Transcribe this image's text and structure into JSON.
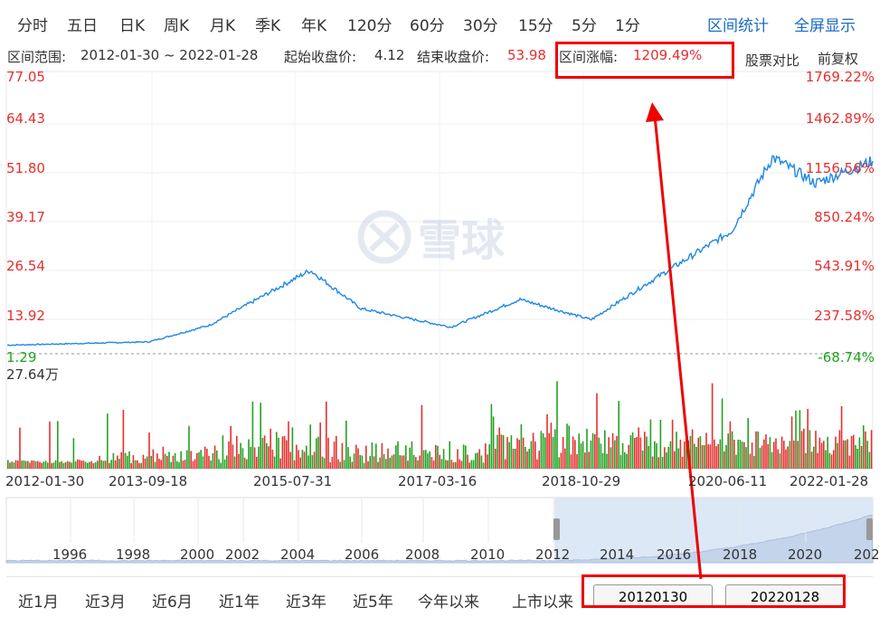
{
  "period_tabs": [
    "分时",
    "五日",
    "日K",
    "周K",
    "月K",
    "季K",
    "年K",
    "120分",
    "60分",
    "30分",
    "15分",
    "5分",
    "1分"
  ],
  "links": {
    "range_stats": "区间统计",
    "fullscreen": "全屏显示"
  },
  "info": {
    "range_label": "区间范围:",
    "range_value": "2012-01-30 ~ 2022-01-28",
    "start_label": "起始收盘价:",
    "start_value": "4.12",
    "end_label": "结束收盘价:",
    "end_value": "53.98",
    "change_label": "区间涨幅:",
    "change_value": "1209.49%",
    "compare": "股票对比",
    "adjust": "前复权"
  },
  "price_axis": [
    "77.05",
    "64.43",
    "51.80",
    "39.17",
    "26.54",
    "13.92",
    "1.29"
  ],
  "pct_axis": [
    "1769.22%",
    "1462.89%",
    "1156.56%",
    "850.24%",
    "543.91%",
    "237.58%",
    "-68.74%"
  ],
  "watermark": "雪球",
  "volume_max": "27.64万",
  "x_dates": [
    "2012-01-30",
    "2013-09-18",
    "2015-07-31",
    "2017-03-16",
    "2018-10-29",
    "2020-06-11",
    "2022-01-28"
  ],
  "nav_years": [
    "1996",
    "1998",
    "2000",
    "2002",
    "2004",
    "2006",
    "2008",
    "2010",
    "2012",
    "2014",
    "2016",
    "2018",
    "2020",
    "202"
  ],
  "range_buttons": [
    "近1月",
    "近3月",
    "近6月",
    "近1年",
    "近3年",
    "近5年",
    "今年以来",
    "上市以来"
  ],
  "date_inputs": {
    "start": "20120130",
    "end": "20220128"
  },
  "colors": {
    "up": "#e5302f",
    "down": "#23a223",
    "line": "#1e88e5",
    "link": "#1a6bc4",
    "annotation": "#e00000"
  },
  "chart_data": {
    "type": "line",
    "x": [
      "2012-01-30",
      "2013-09-18",
      "2014-06-01",
      "2015-07-31",
      "2016-03-01",
      "2017-03-16",
      "2018-01-01",
      "2018-10-29",
      "2019-06-01",
      "2020-06-11",
      "2020-12-01",
      "2021-06-01",
      "2022-01-28"
    ],
    "values": [
      4.1,
      5.0,
      9.5,
      24.4,
      14.0,
      9.0,
      16.5,
      11.0,
      20.0,
      35.0,
      55.0,
      48.0,
      53.98
    ],
    "ylim": [
      1.29,
      77.05
    ]
  }
}
